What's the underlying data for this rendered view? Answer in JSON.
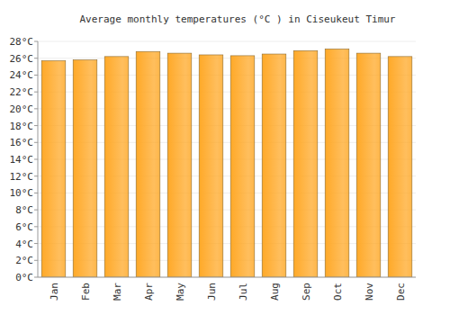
{
  "chart_data": {
    "type": "bar",
    "title": "Average monthly temperatures (°C ) in Ciseukeut Timur",
    "categories": [
      "Jan",
      "Feb",
      "Mar",
      "Apr",
      "May",
      "Jun",
      "Jul",
      "Aug",
      "Sep",
      "Oct",
      "Nov",
      "Dec"
    ],
    "values": [
      25.7,
      25.8,
      26.2,
      26.8,
      26.6,
      26.4,
      26.3,
      26.5,
      26.9,
      27.1,
      26.6,
      26.2
    ],
    "color": "#ffa928",
    "ylim": [
      0,
      28
    ],
    "yticks": [
      {
        "value": 0,
        "label": "0°C"
      },
      {
        "value": 2,
        "label": "2°C"
      },
      {
        "value": 4,
        "label": "4°C"
      },
      {
        "value": 6,
        "label": "6°C"
      },
      {
        "value": 8,
        "label": "8°C"
      },
      {
        "value": 10,
        "label": "10°C"
      },
      {
        "value": 12,
        "label": "12°C"
      },
      {
        "value": 14,
        "label": "14°C"
      },
      {
        "value": 16,
        "label": "16°C"
      },
      {
        "value": 18,
        "label": "18°C"
      },
      {
        "value": 20,
        "label": "20°C"
      },
      {
        "value": 22,
        "label": "22°C"
      },
      {
        "value": 24,
        "label": "24°C"
      },
      {
        "value": 26,
        "label": "26°C"
      },
      {
        "value": 28,
        "label": "28°C"
      }
    ],
    "grid": true
  }
}
